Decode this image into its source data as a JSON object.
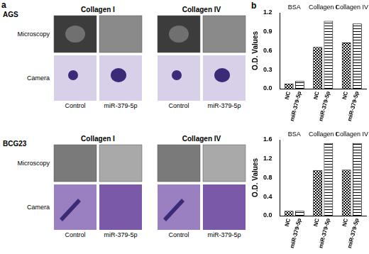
{
  "image_panel": {
    "label": "a",
    "blocks": [
      {
        "cell_line": "AGS",
        "columns": [
          "Collagen I",
          "Collagen IV"
        ],
        "rows": [
          "Microscopy",
          "Camera"
        ],
        "conditions": [
          "Control",
          "miR-379-5p"
        ]
      },
      {
        "cell_line": "BCG23",
        "columns": [
          "Collagen I",
          "Collagen IV"
        ],
        "rows": [
          "Microscopy",
          "Camera"
        ],
        "conditions": [
          "Control",
          "miR-379-5p"
        ]
      }
    ]
  },
  "chart_panel": {
    "label": "b"
  },
  "chart_data": [
    {
      "type": "bar",
      "y_label": "O.D. Values",
      "categories": [
        "BSA",
        "Collagen I",
        "Collagen IV"
      ],
      "series": [
        {
          "name": "NC",
          "color": "#000000",
          "values": [
            0.08,
            0.66,
            0.73
          ]
        },
        {
          "name": "miR-379-5p",
          "color": "#000000",
          "values": [
            0.12,
            1.07,
            1.03
          ]
        }
      ],
      "ylim": [
        0,
        1.2
      ],
      "yticks": [
        {
          "value": 0,
          "label": "0.0"
        },
        {
          "value": 0.3,
          "label": "0.3"
        },
        {
          "value": 0.6,
          "label": "0.6"
        },
        {
          "value": 0.9,
          "label": "0.9"
        },
        {
          "value": 1.2,
          "label": "1.2"
        }
      ],
      "grid": false
    },
    {
      "type": "bar",
      "y_label": "O.D. Values",
      "categories": [
        "BSA",
        "Collagen I",
        "Collagen IV"
      ],
      "series": [
        {
          "name": "NC",
          "color": "#000000",
          "values": [
            0.1,
            0.96,
            0.97
          ]
        },
        {
          "name": "miR-379-5p",
          "color": "#000000",
          "values": [
            0.1,
            1.53,
            1.53
          ]
        }
      ],
      "ylim": [
        0,
        1.6
      ],
      "yticks": [
        {
          "value": 0,
          "label": "0.0"
        },
        {
          "value": 0.4,
          "label": "0.4"
        },
        {
          "value": 0.8,
          "label": "0.8"
        },
        {
          "value": 1.2,
          "label": "1.2"
        },
        {
          "value": 1.6,
          "label": "1.6"
        }
      ],
      "grid": false
    }
  ]
}
